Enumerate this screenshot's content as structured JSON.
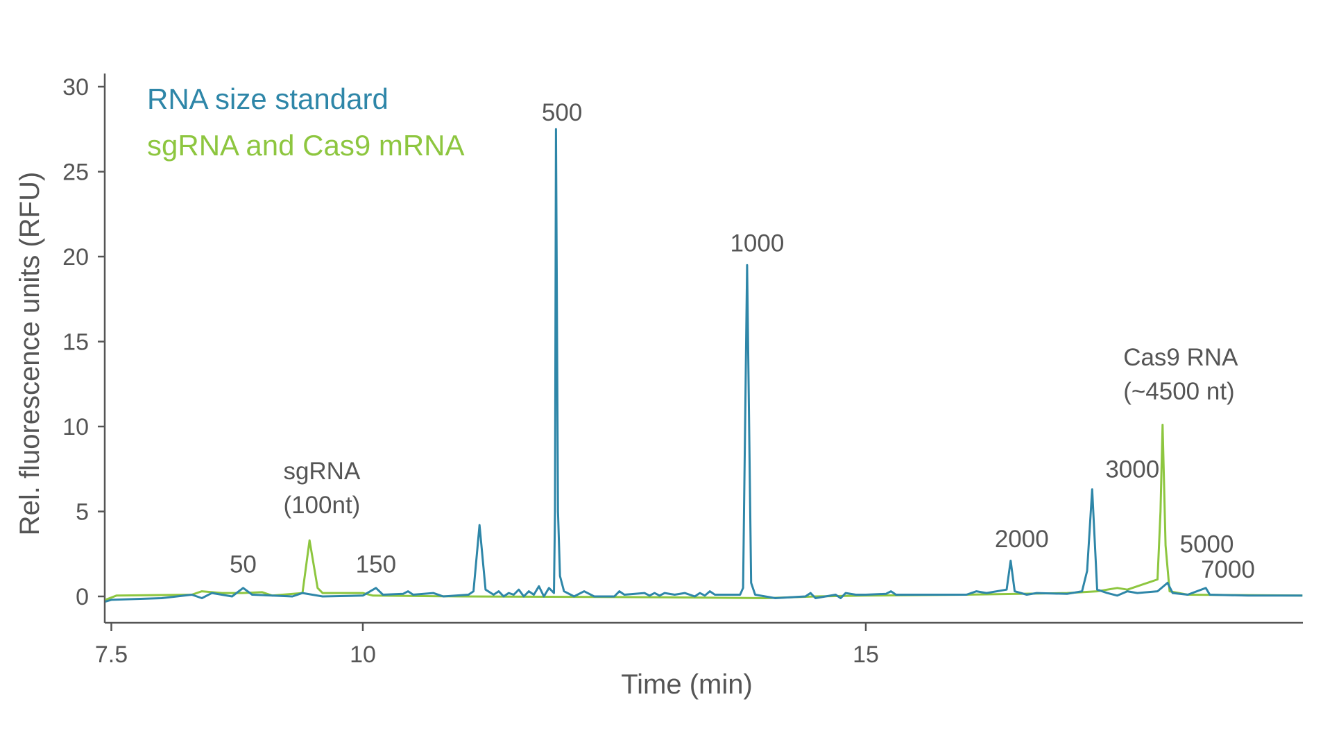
{
  "chart_data": {
    "type": "line",
    "title": "",
    "xlabel": "Time (min)",
    "ylabel": "Rel. fluorescence units (RFU)",
    "xlim": [
      7.44,
      19.34
    ],
    "ylim": [
      -1.5,
      30
    ],
    "grid": false,
    "legend_placement": "top-left",
    "x_ticks": [
      {
        "value": 7.5,
        "label": "7.5"
      },
      {
        "value": 10,
        "label": "10"
      },
      {
        "value": 15,
        "label": "15"
      }
    ],
    "y_ticks": [
      {
        "value": 0,
        "label": "0"
      },
      {
        "value": 5,
        "label": "5"
      },
      {
        "value": 10,
        "label": "10"
      },
      {
        "value": 15,
        "label": "15"
      },
      {
        "value": 20,
        "label": "20"
      },
      {
        "value": 25,
        "label": "25"
      },
      {
        "value": 30,
        "label": "30"
      }
    ],
    "series": [
      {
        "name": "sgRNA and Cas9 mRNA",
        "color": "#8dc63f",
        "points": [
          [
            7.44,
            -0.2
          ],
          [
            7.55,
            0.05
          ],
          [
            8.3,
            0.1
          ],
          [
            8.4,
            0.3
          ],
          [
            8.6,
            0.2
          ],
          [
            8.8,
            0.2
          ],
          [
            9.0,
            0.25
          ],
          [
            9.1,
            0.05
          ],
          [
            9.4,
            0.2
          ],
          [
            9.47,
            3.3
          ],
          [
            9.55,
            0.5
          ],
          [
            9.6,
            0.2
          ],
          [
            10.0,
            0.2
          ],
          [
            10.1,
            0.05
          ],
          [
            11.0,
            0.0
          ],
          [
            13.0,
            -0.05
          ],
          [
            14.0,
            -0.1
          ],
          [
            14.5,
            0.0
          ],
          [
            15.0,
            0.05
          ],
          [
            16.0,
            0.1
          ],
          [
            17.0,
            0.2
          ],
          [
            17.3,
            0.3
          ],
          [
            17.5,
            0.5
          ],
          [
            17.6,
            0.4
          ],
          [
            17.7,
            0.6
          ],
          [
            17.8,
            0.8
          ],
          [
            17.9,
            1.0
          ],
          [
            17.93,
            5.0
          ],
          [
            17.95,
            10.1
          ],
          [
            17.98,
            3.0
          ],
          [
            18.02,
            0.3
          ],
          [
            18.2,
            0.1
          ],
          [
            19.34,
            0.05
          ]
        ]
      },
      {
        "name": "RNA size standard",
        "color": "#2e86a8",
        "points": [
          [
            7.44,
            -0.3
          ],
          [
            7.5,
            -0.2
          ],
          [
            8.0,
            -0.1
          ],
          [
            8.3,
            0.1
          ],
          [
            8.4,
            -0.1
          ],
          [
            8.5,
            0.2
          ],
          [
            8.7,
            0.0
          ],
          [
            8.81,
            0.5
          ],
          [
            8.9,
            0.1
          ],
          [
            9.3,
            0.0
          ],
          [
            9.4,
            0.2
          ],
          [
            9.6,
            0.0
          ],
          [
            10.0,
            0.05
          ],
          [
            10.13,
            0.5
          ],
          [
            10.2,
            0.1
          ],
          [
            10.4,
            0.15
          ],
          [
            10.45,
            0.3
          ],
          [
            10.5,
            0.1
          ],
          [
            10.7,
            0.2
          ],
          [
            10.8,
            0.0
          ],
          [
            11.05,
            0.1
          ],
          [
            11.1,
            0.3
          ],
          [
            11.16,
            4.2
          ],
          [
            11.22,
            0.4
          ],
          [
            11.3,
            0.1
          ],
          [
            11.35,
            0.3
          ],
          [
            11.4,
            0.0
          ],
          [
            11.45,
            0.2
          ],
          [
            11.5,
            0.1
          ],
          [
            11.55,
            0.4
          ],
          [
            11.6,
            0.0
          ],
          [
            11.65,
            0.3
          ],
          [
            11.7,
            0.1
          ],
          [
            11.75,
            0.6
          ],
          [
            11.8,
            0.0
          ],
          [
            11.85,
            0.5
          ],
          [
            11.9,
            0.2
          ],
          [
            11.91,
            5.0
          ],
          [
            11.92,
            27.5
          ],
          [
            11.94,
            5.0
          ],
          [
            11.96,
            1.2
          ],
          [
            12.0,
            0.3
          ],
          [
            12.1,
            0.0
          ],
          [
            12.2,
            0.3
          ],
          [
            12.3,
            0.0
          ],
          [
            12.5,
            0.0
          ],
          [
            12.55,
            0.3
          ],
          [
            12.6,
            0.1
          ],
          [
            12.8,
            0.2
          ],
          [
            12.85,
            0.05
          ],
          [
            12.9,
            0.2
          ],
          [
            12.95,
            0.05
          ],
          [
            13.0,
            0.2
          ],
          [
            13.1,
            0.1
          ],
          [
            13.2,
            0.2
          ],
          [
            13.3,
            0.0
          ],
          [
            13.35,
            0.2
          ],
          [
            13.4,
            0.05
          ],
          [
            13.45,
            0.3
          ],
          [
            13.5,
            0.1
          ],
          [
            13.75,
            0.1
          ],
          [
            13.78,
            0.5
          ],
          [
            13.82,
            19.5
          ],
          [
            13.86,
            0.8
          ],
          [
            13.9,
            0.1
          ],
          [
            14.0,
            0.0
          ],
          [
            14.1,
            -0.1
          ],
          [
            14.4,
            0.0
          ],
          [
            14.45,
            0.2
          ],
          [
            14.5,
            -0.1
          ],
          [
            14.7,
            0.1
          ],
          [
            14.75,
            -0.1
          ],
          [
            14.8,
            0.2
          ],
          [
            14.9,
            0.1
          ],
          [
            15.0,
            0.1
          ],
          [
            15.2,
            0.15
          ],
          [
            15.25,
            0.3
          ],
          [
            15.3,
            0.1
          ],
          [
            16.0,
            0.1
          ],
          [
            16.1,
            0.3
          ],
          [
            16.2,
            0.2
          ],
          [
            16.4,
            0.4
          ],
          [
            16.44,
            2.1
          ],
          [
            16.48,
            0.3
          ],
          [
            16.6,
            0.1
          ],
          [
            16.7,
            0.2
          ],
          [
            17.0,
            0.15
          ],
          [
            17.15,
            0.3
          ],
          [
            17.2,
            1.5
          ],
          [
            17.25,
            6.3
          ],
          [
            17.3,
            0.4
          ],
          [
            17.4,
            0.2
          ],
          [
            17.5,
            0.05
          ],
          [
            17.6,
            0.3
          ],
          [
            17.7,
            0.2
          ],
          [
            17.9,
            0.3
          ],
          [
            18.0,
            0.8
          ],
          [
            18.05,
            0.2
          ],
          [
            18.2,
            0.1
          ],
          [
            18.38,
            0.5
          ],
          [
            18.42,
            0.1
          ],
          [
            18.8,
            0.05
          ],
          [
            19.34,
            0.05
          ]
        ]
      }
    ],
    "annotations": [
      {
        "lines": [
          "50"
        ],
        "x": 8.81,
        "y": 1.4,
        "anchor": "middle"
      },
      {
        "lines": [
          "sgRNA",
          "(100nt)"
        ],
        "x": 9.21,
        "y": 6.9,
        "anchor": "start"
      },
      {
        "lines": [
          "150"
        ],
        "x": 10.13,
        "y": 1.4,
        "anchor": "middle"
      },
      {
        "lines": [
          "500"
        ],
        "x": 11.98,
        "y": 28.0,
        "anchor": "middle"
      },
      {
        "lines": [
          "1000"
        ],
        "x": 13.92,
        "y": 20.3,
        "anchor": "middle"
      },
      {
        "lines": [
          "2000"
        ],
        "x": 16.55,
        "y": 2.9,
        "anchor": "middle"
      },
      {
        "lines": [
          "3000"
        ],
        "x": 17.65,
        "y": 7.0,
        "anchor": "middle"
      },
      {
        "lines": [
          "Cas9 RNA",
          "(~4500 nt)"
        ],
        "x": 17.56,
        "y": 13.6,
        "anchor": "start"
      },
      {
        "lines": [
          "5000"
        ],
        "x": 18.39,
        "y": 2.6,
        "anchor": "middle"
      },
      {
        "lines": [
          "7000"
        ],
        "x": 18.6,
        "y": 1.1,
        "anchor": "middle"
      }
    ]
  }
}
